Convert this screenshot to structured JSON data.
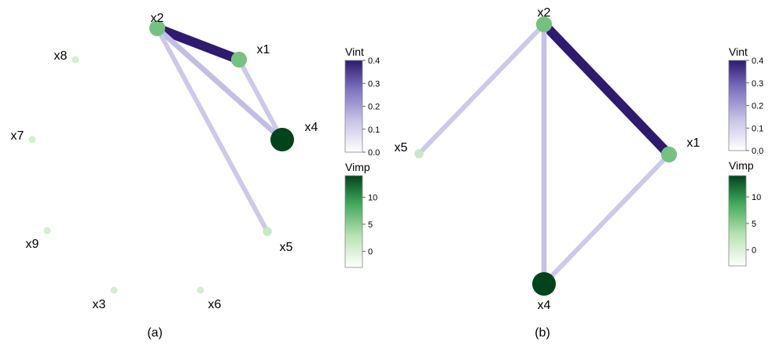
{
  "colors": {
    "edge_low": "#f7f5fb",
    "edge_mid": "#9e9ad1",
    "edge_high": "#3f007d",
    "node_low": "#f4faf2",
    "node_mid": "#74c476",
    "node_high": "#00441b"
  },
  "legends": {
    "vint": {
      "title": "Vint",
      "ticks": [
        "0.0",
        "0.1",
        "0.2",
        "0.3",
        "0.4"
      ],
      "range": [
        0,
        0.4
      ]
    },
    "vimp": {
      "title": "Vimp",
      "ticks": [
        "0",
        "5",
        "10"
      ],
      "range": [
        -3,
        14
      ]
    }
  },
  "panels": [
    {
      "label": "(a)",
      "nodes": [
        {
          "id": "x1",
          "label": "x1",
          "vimp": 8
        },
        {
          "id": "x2",
          "label": "x2",
          "vimp": 8
        },
        {
          "id": "x3",
          "label": "x3",
          "vimp": 0
        },
        {
          "id": "x4",
          "label": "x4",
          "vimp": 14
        },
        {
          "id": "x5",
          "label": "x5",
          "vimp": 2
        },
        {
          "id": "x6",
          "label": "x6",
          "vimp": 0
        },
        {
          "id": "x7",
          "label": "x7",
          "vimp": 0
        },
        {
          "id": "x8",
          "label": "x8",
          "vimp": 0
        },
        {
          "id": "x9",
          "label": "x9",
          "vimp": 0
        }
      ],
      "edges": [
        {
          "from": "x2",
          "to": "x1",
          "vint": 0.4
        },
        {
          "from": "x2",
          "to": "x4",
          "vint": 0.14
        },
        {
          "from": "x1",
          "to": "x4",
          "vint": 0.1
        },
        {
          "from": "x2",
          "to": "x5",
          "vint": 0.1
        }
      ]
    },
    {
      "label": "(b)",
      "nodes": [
        {
          "id": "x1",
          "label": "x1",
          "vimp": 8
        },
        {
          "id": "x2",
          "label": "x2",
          "vimp": 8
        },
        {
          "id": "x4",
          "label": "x4",
          "vimp": 14
        },
        {
          "id": "x5",
          "label": "x5",
          "vimp": 2
        }
      ],
      "edges": [
        {
          "from": "x2",
          "to": "x1",
          "vint": 0.4
        },
        {
          "from": "x2",
          "to": "x4",
          "vint": 0.13
        },
        {
          "from": "x2",
          "to": "x5",
          "vint": 0.1
        },
        {
          "from": "x1",
          "to": "x4",
          "vint": 0.1
        }
      ]
    }
  ]
}
